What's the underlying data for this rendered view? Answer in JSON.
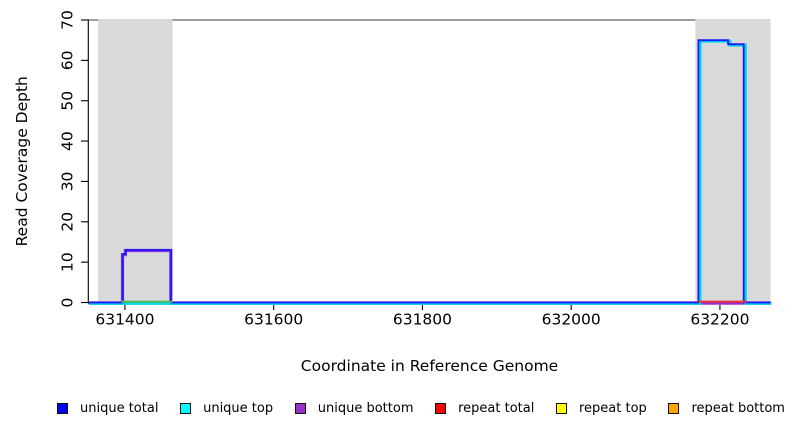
{
  "chart_data": {
    "type": "line",
    "title": "",
    "xlabel": "Coordinate in Reference Genome",
    "ylabel": "Read Coverage Depth",
    "xlim": [
      631351,
      632268
    ],
    "ylim": [
      0,
      70
    ],
    "x_ticks": [
      631400,
      631600,
      631800,
      632000,
      632200
    ],
    "y_ticks": [
      0,
      10,
      20,
      30,
      40,
      50,
      60,
      70
    ],
    "grid": false,
    "legend_position": "bottom",
    "top_boundary_line": {
      "y": 70,
      "color": "#7f7f7f"
    },
    "shaded_regions": [
      {
        "name": "repeat-region-left",
        "x0": 631364,
        "x1": 631464,
        "color": "#d9d9d9"
      },
      {
        "name": "repeat-region-right",
        "x0": 632167,
        "x1": 632268,
        "color": "#d9d9d9"
      }
    ],
    "series": [
      {
        "name": "unique total",
        "legend_color": "#0000ff",
        "draw_color": "#1a1aff",
        "width": 1.8,
        "draw_order": 6,
        "dx": 0,
        "dy": 0,
        "points": [
          [
            631351,
            0
          ],
          [
            631397,
            0
          ],
          [
            631397,
            12
          ],
          [
            631401,
            12
          ],
          [
            631401,
            13
          ],
          [
            631462,
            13
          ],
          [
            631462,
            0
          ],
          [
            632171,
            0
          ],
          [
            632171,
            65
          ],
          [
            632211,
            65
          ],
          [
            632211,
            64
          ],
          [
            632232,
            64
          ],
          [
            632232,
            0
          ],
          [
            632268,
            0
          ]
        ]
      },
      {
        "name": "unique top",
        "legend_color": "#00ffff",
        "draw_color": "#00d8ee",
        "width": 3.0,
        "draw_order": 5,
        "dx": 0.9,
        "dy": 0.9,
        "points": [
          [
            631351,
            0
          ],
          [
            632172,
            0
          ],
          [
            632172,
            65
          ],
          [
            632212,
            65
          ],
          [
            632212,
            64
          ],
          [
            632233,
            64
          ],
          [
            632233,
            0
          ],
          [
            632268,
            0
          ]
        ]
      },
      {
        "name": "unique bottom",
        "legend_color": "#9932cc",
        "draw_color": "#8b2fe0",
        "width": 3.2,
        "draw_order": 4,
        "dx": 0.5,
        "dy": 0.5,
        "points": [
          [
            631351,
            0
          ],
          [
            631396,
            0
          ],
          [
            631396,
            12
          ],
          [
            631400,
            12
          ],
          [
            631400,
            13
          ],
          [
            631461,
            13
          ],
          [
            631461,
            0
          ],
          [
            632268,
            0
          ]
        ]
      },
      {
        "name": "repeat total",
        "legend_color": "#ff0000",
        "draw_color": "#ffb0b0",
        "width": 3.6,
        "draw_order": 3,
        "dx": 0,
        "dy": 0.6,
        "points": [
          [
            631351,
            0
          ],
          [
            632268,
            0
          ]
        ]
      },
      {
        "name": "repeat top",
        "legend_color": "#ffff00",
        "draw_color": "#ffff00",
        "width": 1.0,
        "draw_order": 1,
        "dx": 0,
        "dy": 0,
        "points": [
          [
            631351,
            0
          ],
          [
            632268,
            0
          ]
        ]
      },
      {
        "name": "repeat bottom",
        "legend_color": "#ffa500",
        "draw_color": "#ffa500",
        "width": 1.0,
        "draw_order": 2,
        "dx": 0,
        "dy": 0,
        "points": [
          [
            631351,
            0
          ],
          [
            632268,
            0
          ]
        ]
      }
    ],
    "zero_overlays": [
      {
        "name": "left-region-zero-line",
        "color": "#55b555",
        "x0": 631395,
        "x1": 631464,
        "width": 2.2
      },
      {
        "name": "right-region-zero-line",
        "color": "#e8323c",
        "x0": 632171,
        "x1": 632236,
        "width": 2.2
      }
    ]
  },
  "legend": {
    "items": [
      {
        "label": "unique total",
        "color": "#0000ff"
      },
      {
        "label": "unique top",
        "color": "#00ffff"
      },
      {
        "label": "unique bottom",
        "color": "#9932cc"
      },
      {
        "label": "repeat total",
        "color": "#ff0000"
      },
      {
        "label": "repeat top",
        "color": "#ffff00"
      },
      {
        "label": "repeat bottom",
        "color": "#ffa500"
      }
    ]
  }
}
